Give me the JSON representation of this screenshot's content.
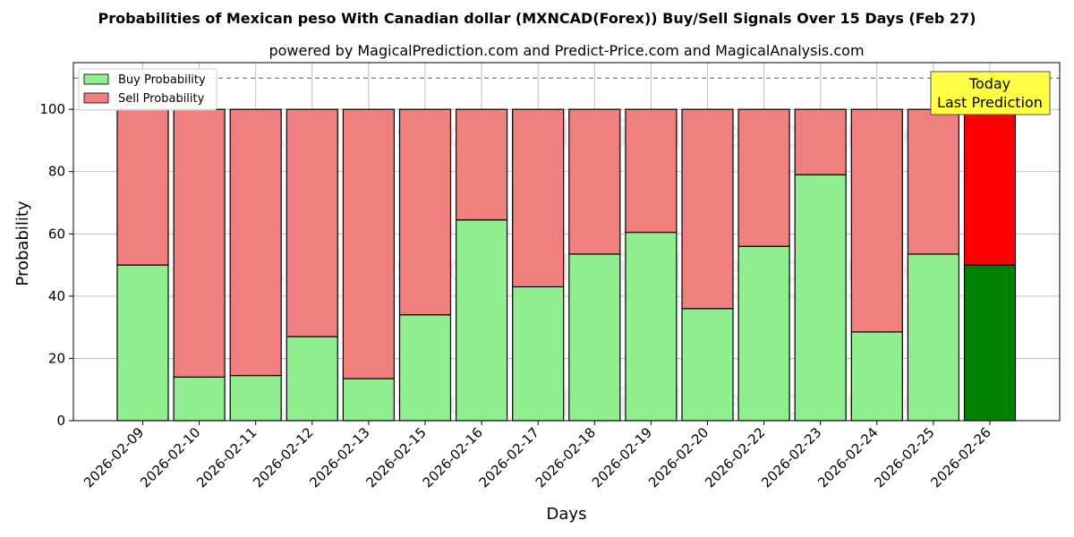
{
  "chart_data": {
    "type": "bar",
    "stacked": true,
    "title": "Probabilities of Mexican peso With Canadian dollar (MXNCAD(Forex)) Buy/Sell Signals Over 15 Days (Feb 27)",
    "subtitle": "powered by MagicalPrediction.com and Predict-Price.com and MagicalAnalysis.com",
    "xlabel": "Days",
    "ylabel": "Probability",
    "ylim": [
      0,
      115
    ],
    "yticks": [
      0,
      20,
      40,
      60,
      80,
      100
    ],
    "grid": true,
    "legend_position": "top-left",
    "reference_line": 110,
    "categories": [
      "2026-02-09",
      "2026-02-10",
      "2026-02-11",
      "2026-02-12",
      "2026-02-13",
      "2026-02-15",
      "2026-02-16",
      "2026-02-17",
      "2026-02-18",
      "2026-02-19",
      "2026-02-20",
      "2026-02-22",
      "2026-02-23",
      "2026-02-24",
      "2026-02-25",
      "2026-02-26"
    ],
    "series": [
      {
        "name": "Buy Probability",
        "color": "#90ee90",
        "highlight_color": "#008000",
        "values": [
          50,
          14,
          14.5,
          27,
          13.5,
          34,
          64.5,
          43,
          53.5,
          60.5,
          36,
          56,
          79,
          28.5,
          53.5,
          50
        ]
      },
      {
        "name": "Sell Probability",
        "color": "#f08080",
        "highlight_color": "#ff0000",
        "values": [
          50,
          86,
          85.5,
          73,
          86.5,
          66,
          35.5,
          57,
          46.5,
          39.5,
          64,
          44,
          21,
          71.5,
          46.5,
          50
        ]
      }
    ],
    "highlight_index": 15,
    "annotation": {
      "lines": [
        "Today",
        "Last Prediction"
      ],
      "bg_color": "#ffff44"
    },
    "watermarks": [
      "MagicalAnalysis.com",
      "MagicalPrediction.com"
    ]
  }
}
